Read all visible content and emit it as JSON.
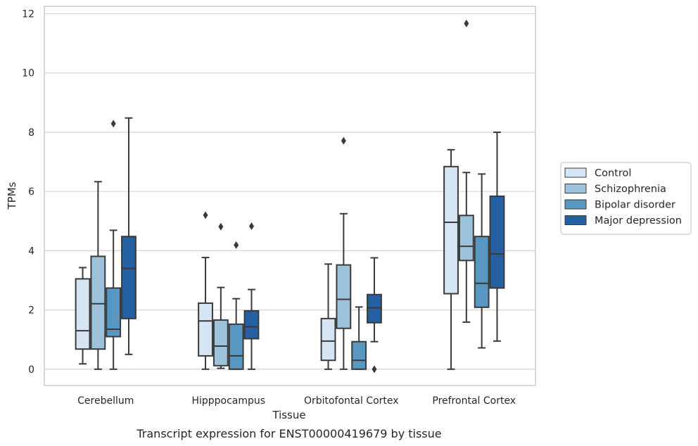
{
  "chart_data": {
    "type": "box",
    "title": "",
    "caption": "Transcript expression for ENST00000419679 by tissue",
    "xlabel": "Tissue",
    "ylabel": "TPMs",
    "ylim": [
      -0.55,
      12.25
    ],
    "yticks": [
      0,
      2,
      4,
      6,
      8,
      10,
      12
    ],
    "grid": "horizontal",
    "legend_position": "right",
    "categories": [
      "Cerebellum",
      "Hipppocampus",
      "Orbitofontal Cortex",
      "Prefrontal Cortex"
    ],
    "series": [
      {
        "name": "Control",
        "color": "#d6e5f4",
        "boxes": [
          {
            "whislo": 0.18,
            "q1": 0.68,
            "med": 1.3,
            "q3": 3.05,
            "whishi": 3.43,
            "fliers": []
          },
          {
            "whislo": 0.0,
            "q1": 0.45,
            "med": 1.63,
            "q3": 2.23,
            "whishi": 3.77,
            "fliers": [
              5.2
            ]
          },
          {
            "whislo": 0.0,
            "q1": 0.3,
            "med": 0.95,
            "q3": 1.71,
            "whishi": 3.55,
            "fliers": []
          },
          {
            "whislo": 0.0,
            "q1": 2.55,
            "med": 4.96,
            "q3": 6.84,
            "whishi": 7.41,
            "fliers": []
          }
        ]
      },
      {
        "name": "Schizophrenia",
        "color": "#9cc3db",
        "boxes": [
          {
            "whislo": 0.0,
            "q1": 0.68,
            "med": 2.21,
            "q3": 3.81,
            "whishi": 6.33,
            "fliers": []
          },
          {
            "whislo": 0.03,
            "q1": 0.12,
            "med": 0.78,
            "q3": 1.66,
            "whishi": 2.76,
            "fliers": [
              4.81
            ]
          },
          {
            "whislo": 0.0,
            "q1": 1.38,
            "med": 2.36,
            "q3": 3.52,
            "whishi": 5.25,
            "fliers": [
              7.71
            ]
          },
          {
            "whislo": 1.59,
            "q1": 3.67,
            "med": 4.15,
            "q3": 5.19,
            "whishi": 6.64,
            "fliers": [
              11.67
            ]
          }
        ]
      },
      {
        "name": "Bipolar disorder",
        "color": "#5797c2",
        "boxes": [
          {
            "whislo": 0.0,
            "q1": 1.1,
            "med": 1.35,
            "q3": 2.74,
            "whishi": 4.69,
            "fliers": [
              8.29
            ]
          },
          {
            "whislo": 0.0,
            "q1": 0.0,
            "med": 0.45,
            "q3": 1.52,
            "whishi": 2.38,
            "fliers": [
              4.19
            ]
          },
          {
            "whislo": 0.0,
            "q1": 0.0,
            "med": 0.3,
            "q3": 0.93,
            "whishi": 2.1,
            "fliers": []
          },
          {
            "whislo": 0.72,
            "q1": 2.09,
            "med": 2.9,
            "q3": 4.48,
            "whishi": 6.59,
            "fliers": []
          }
        ]
      },
      {
        "name": "Major depression",
        "color": "#2460a4",
        "boxes": [
          {
            "whislo": 0.5,
            "q1": 1.71,
            "med": 3.4,
            "q3": 4.48,
            "whishi": 8.48,
            "fliers": []
          },
          {
            "whislo": 0.0,
            "q1": 1.03,
            "med": 1.43,
            "q3": 1.97,
            "whishi": 2.69,
            "fliers": [
              4.83
            ]
          },
          {
            "whislo": 0.93,
            "q1": 1.57,
            "med": 2.07,
            "q3": 2.52,
            "whishi": 3.76,
            "fliers": [
              0.0
            ]
          },
          {
            "whislo": 0.95,
            "q1": 2.74,
            "med": 3.89,
            "q3": 5.84,
            "whishi": 8.0,
            "fliers": []
          }
        ]
      }
    ]
  }
}
